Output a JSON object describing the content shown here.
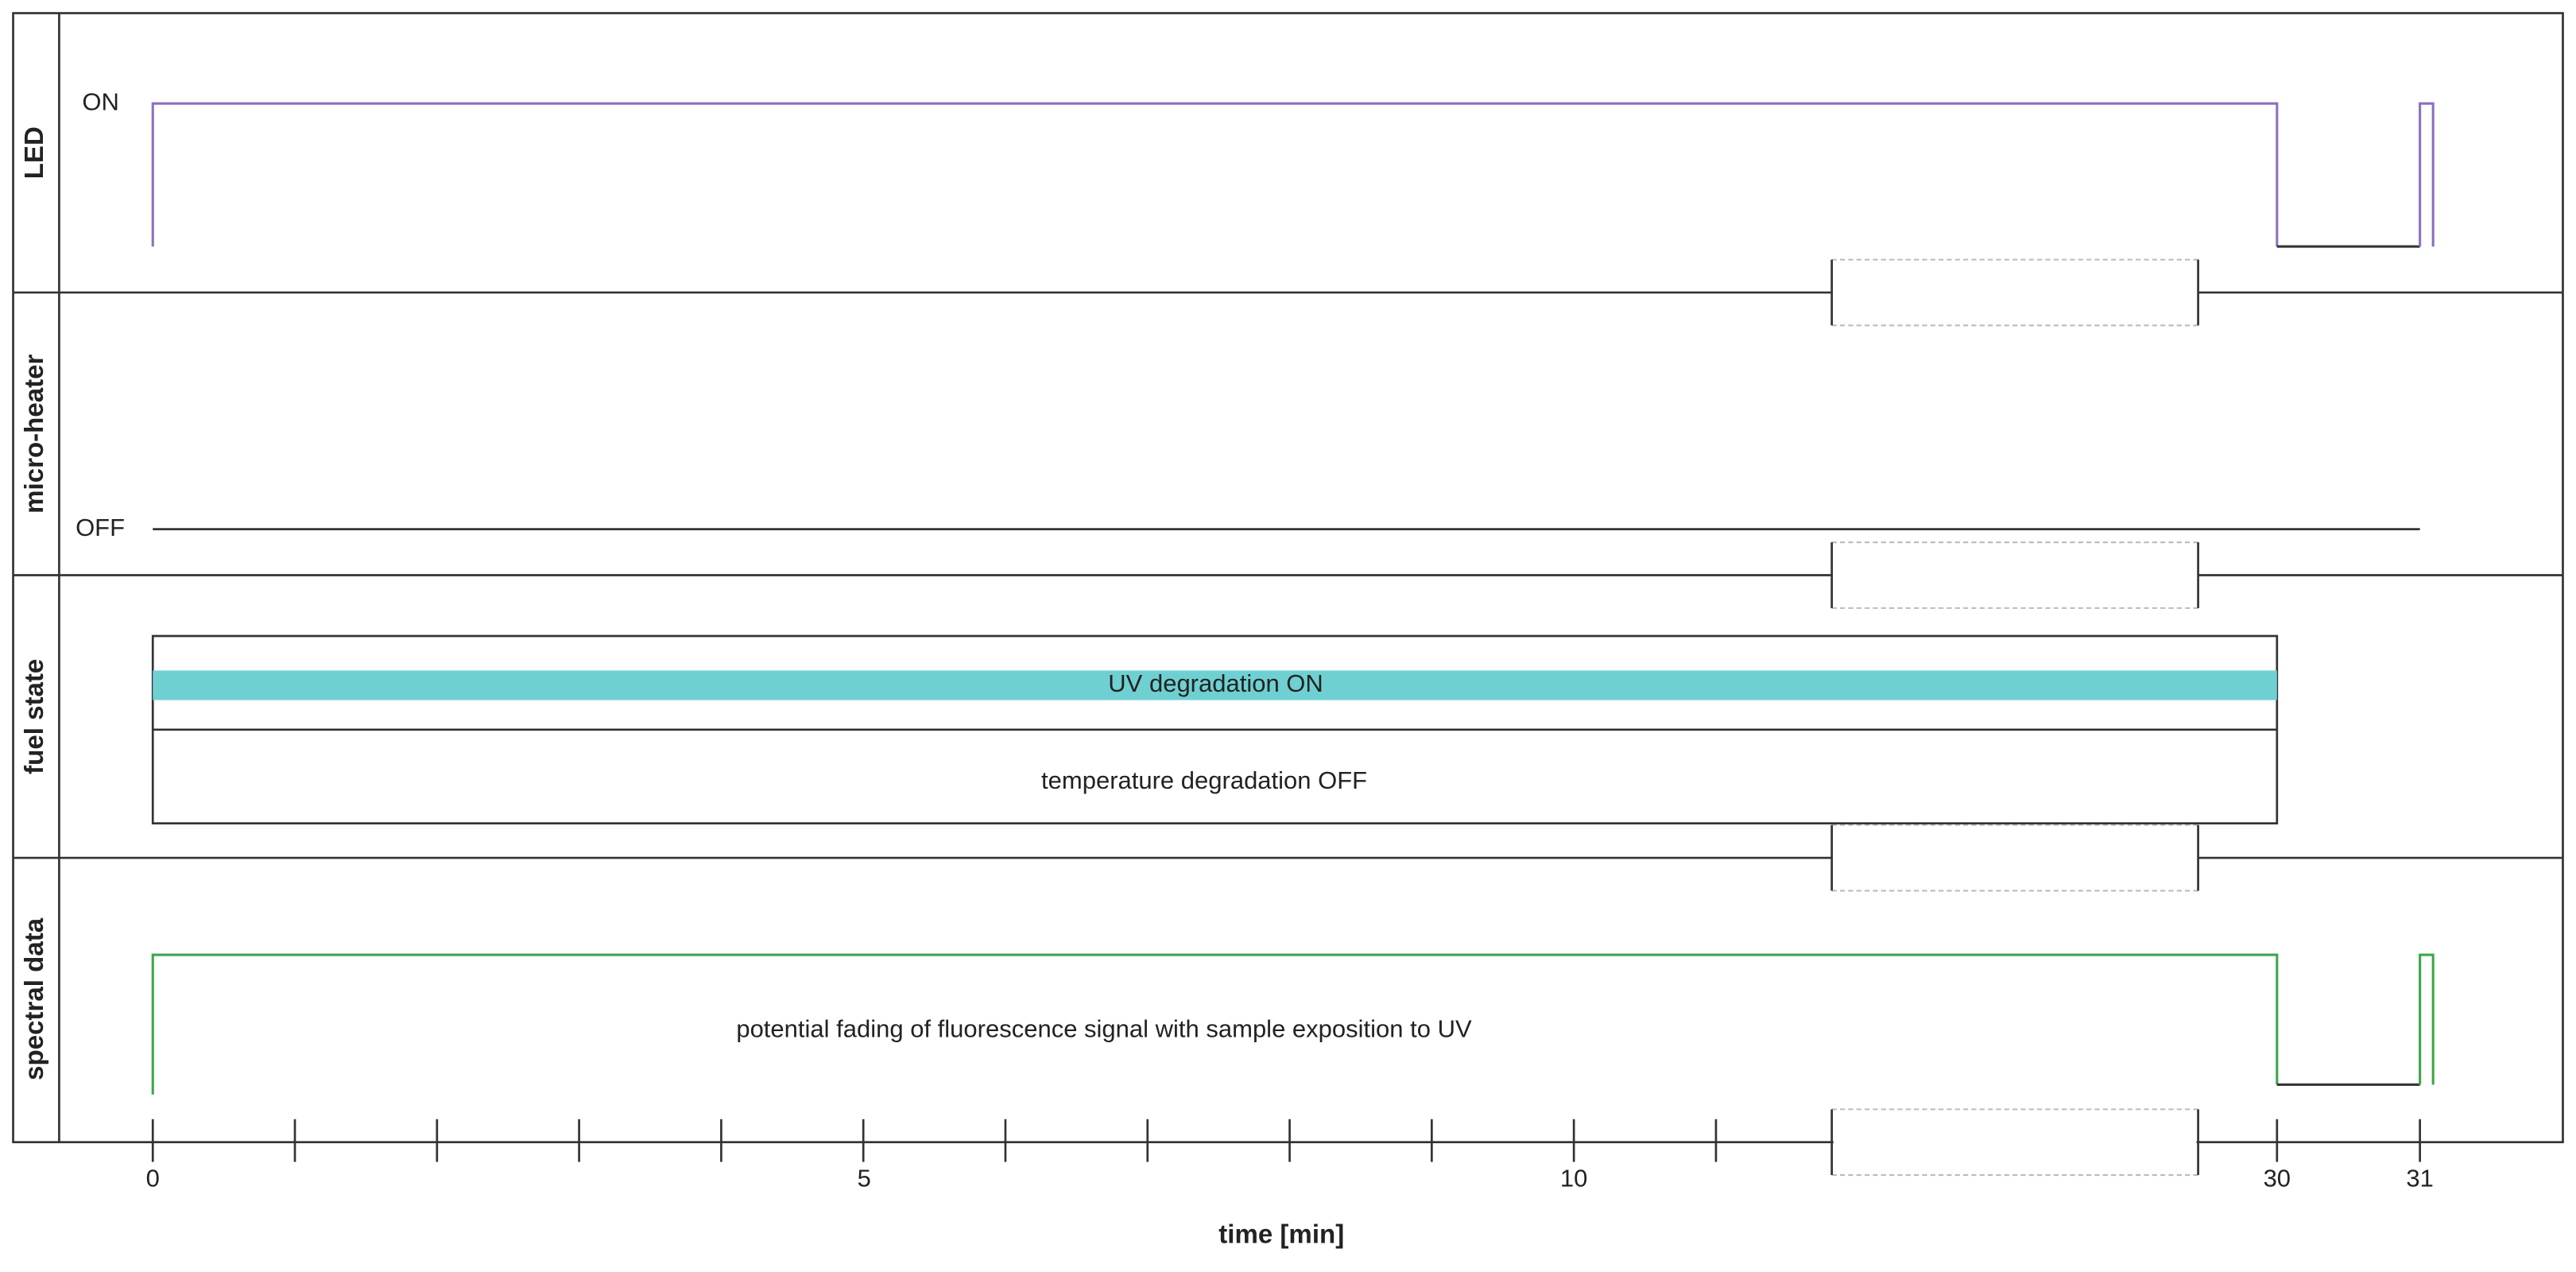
{
  "rows": [
    "LED",
    "micro-heater",
    "fuel state",
    "spectral data"
  ],
  "led": {
    "on_label": "ON"
  },
  "heater": {
    "off_label": "OFF"
  },
  "fuel": {
    "uv_label": "UV degradation ON",
    "temp_label": "temperature degradation OFF"
  },
  "spectral": {
    "note": "potential fading of fluorescence signal with sample exposition to UV"
  },
  "axis": {
    "label": "time [min]",
    "tick_labels": [
      "0",
      "5",
      "10",
      "30",
      "31"
    ]
  }
}
